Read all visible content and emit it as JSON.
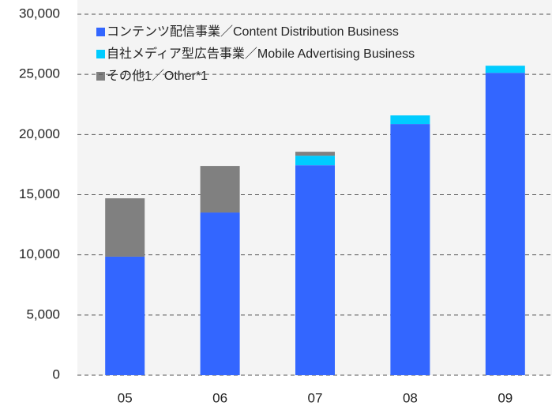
{
  "chart_data": {
    "type": "stacked_bar",
    "categories": [
      "05",
      "06",
      "07",
      "08",
      "09"
    ],
    "series": [
      {
        "name": "コンテンツ配信事業／Content Distribution Business",
        "color": "#3366ff",
        "values": [
          9850,
          13520,
          17450,
          20870,
          25130
        ]
      },
      {
        "name": "自社メディア型広告事業／Mobile Advertising Business",
        "color": "#00ccff",
        "values": [
          0,
          0,
          790,
          720,
          590
        ]
      },
      {
        "name": "その他1／Other*1",
        "color": "#808080",
        "values": [
          4850,
          3870,
          330,
          0,
          0
        ]
      }
    ],
    "ylim": [
      0,
      30000
    ],
    "yticks": [
      {
        "value": 0,
        "label": "0"
      },
      {
        "value": 5000,
        "label": "5,000"
      },
      {
        "value": 10000,
        "label": "10,000"
      },
      {
        "value": 15000,
        "label": "15,000"
      },
      {
        "value": 20000,
        "label": "20,000"
      },
      {
        "value": 25000,
        "label": "25,000"
      },
      {
        "value": 30000,
        "label": "30,000"
      }
    ],
    "grid": true
  }
}
